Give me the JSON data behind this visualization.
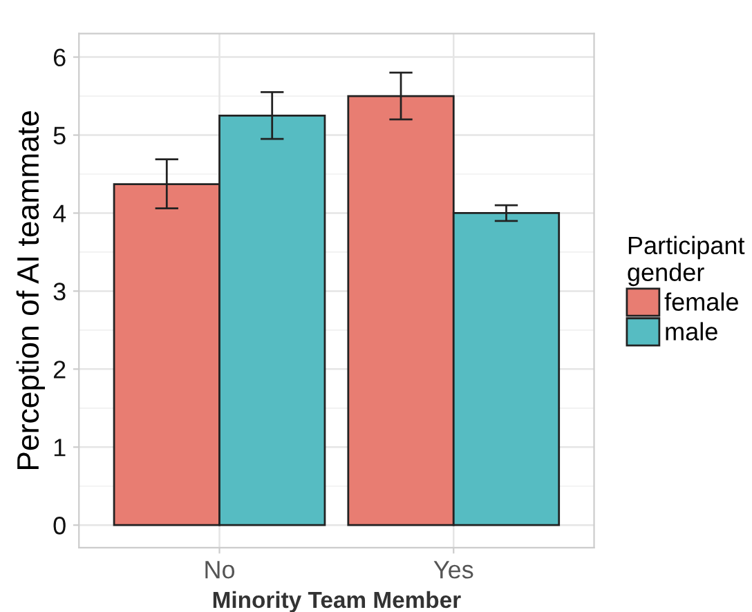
{
  "chart_data": {
    "type": "bar",
    "xlabel": "Minority Team Member",
    "ylabel": "Perception of AI teammate",
    "legend_title": "Participant\ngender",
    "categories": [
      "No",
      "Yes"
    ],
    "series": [
      {
        "name": "female",
        "color": "#e87d72",
        "values": [
          4.37,
          5.5
        ],
        "errors": [
          [
            4.06,
            4.69
          ],
          [
            5.2,
            5.8
          ]
        ]
      },
      {
        "name": "male",
        "color": "#56bcc2",
        "values": [
          5.25,
          4.0
        ],
        "errors": [
          [
            4.95,
            5.55
          ],
          [
            3.9,
            4.1
          ]
        ]
      }
    ],
    "ylim": [
      -0.29,
      6.3
    ],
    "yticks": [
      0,
      1,
      2,
      3,
      4,
      5,
      6
    ],
    "grid": true,
    "legend": "right"
  }
}
